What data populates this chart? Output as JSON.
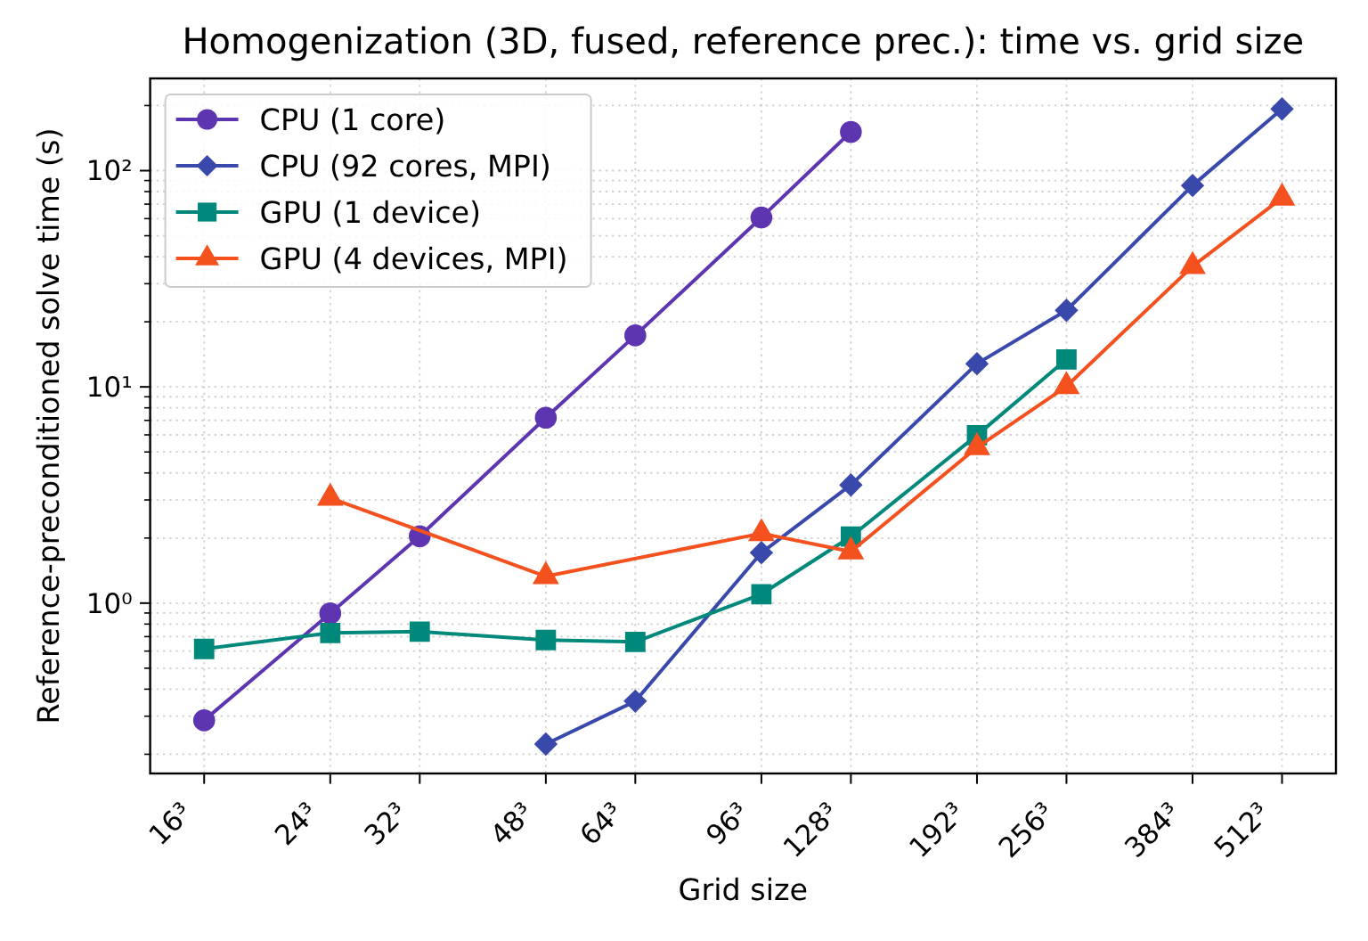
{
  "chart_data": {
    "type": "line",
    "title": "Homogenization (3D, fused, reference prec.): time vs. grid size",
    "xlabel": "Grid size",
    "ylabel": "Reference-preconditioned solve time (s)",
    "log": "xy",
    "grid": true,
    "legend": "top left",
    "line_style": "solid",
    "xlim": [
      13.45,
      608.9
    ],
    "xticks": [
      {
        "value": 16,
        "label": "16³"
      },
      {
        "value": 24,
        "label": "24³"
      },
      {
        "value": 32,
        "label": "32³"
      },
      {
        "value": 48,
        "label": "48³"
      },
      {
        "value": 64,
        "label": "64³"
      },
      {
        "value": 96,
        "label": "96³"
      },
      {
        "value": 128,
        "label": "128³"
      },
      {
        "value": 192,
        "label": "192³"
      },
      {
        "value": 256,
        "label": "256³"
      },
      {
        "value": 384,
        "label": "384³"
      },
      {
        "value": 512,
        "label": "512³"
      }
    ],
    "ylim": [
      0.163,
      267
    ],
    "yticks": [
      {
        "value": 0.2,
        "label": null
      },
      {
        "value": 0.3,
        "label": null
      },
      {
        "value": 0.4,
        "label": null
      },
      {
        "value": 0.5,
        "label": null
      },
      {
        "value": 0.6,
        "label": null
      },
      {
        "value": 0.7,
        "label": null
      },
      {
        "value": 0.8,
        "label": null
      },
      {
        "value": 0.9,
        "label": null
      },
      {
        "value": 1,
        "label": "10⁰"
      },
      {
        "value": 2,
        "label": null
      },
      {
        "value": 3,
        "label": null
      },
      {
        "value": 4,
        "label": null
      },
      {
        "value": 5,
        "label": null
      },
      {
        "value": 6,
        "label": null
      },
      {
        "value": 7,
        "label": null
      },
      {
        "value": 8,
        "label": null
      },
      {
        "value": 9,
        "label": null
      },
      {
        "value": 10,
        "label": "10¹"
      },
      {
        "value": 20,
        "label": null
      },
      {
        "value": 30,
        "label": null
      },
      {
        "value": 40,
        "label": null
      },
      {
        "value": 50,
        "label": null
      },
      {
        "value": 60,
        "label": null
      },
      {
        "value": 70,
        "label": null
      },
      {
        "value": 80,
        "label": null
      },
      {
        "value": 90,
        "label": null
      },
      {
        "value": 100,
        "label": "10²"
      },
      {
        "value": 200,
        "label": null
      }
    ],
    "series": [
      {
        "name": "CPU (1 core)",
        "color": "#5e35b1",
        "marker": "circle",
        "x": [
          16,
          24,
          32,
          48,
          64,
          96,
          128
        ],
        "values": [
          0.287,
          0.897,
          2.04,
          7.2,
          17.3,
          60.7,
          151
        ]
      },
      {
        "name": "CPU (92 cores, MPI)",
        "color": "#3949ab",
        "marker": "diamond",
        "x": [
          48,
          64,
          96,
          128,
          192,
          256,
          384,
          512
        ],
        "values": [
          0.223,
          0.352,
          1.71,
          3.52,
          12.8,
          22.6,
          85.4,
          193
        ]
      },
      {
        "name": "GPU (1 device)",
        "color": "#00897b",
        "marker": "square",
        "x": [
          16,
          24,
          32,
          48,
          64,
          96,
          128,
          192,
          256
        ],
        "values": [
          0.614,
          0.728,
          0.738,
          0.675,
          0.662,
          1.1,
          2.03,
          5.98,
          13.4
        ]
      },
      {
        "name": "GPU (4 devices, MPI)",
        "color": "#f4511e",
        "marker": "triangle",
        "x": [
          24,
          48,
          96,
          128,
          192,
          256,
          384,
          512
        ],
        "values": [
          3.06,
          1.33,
          2.1,
          1.73,
          5.25,
          10.06,
          36.1,
          74.8
        ]
      }
    ]
  }
}
